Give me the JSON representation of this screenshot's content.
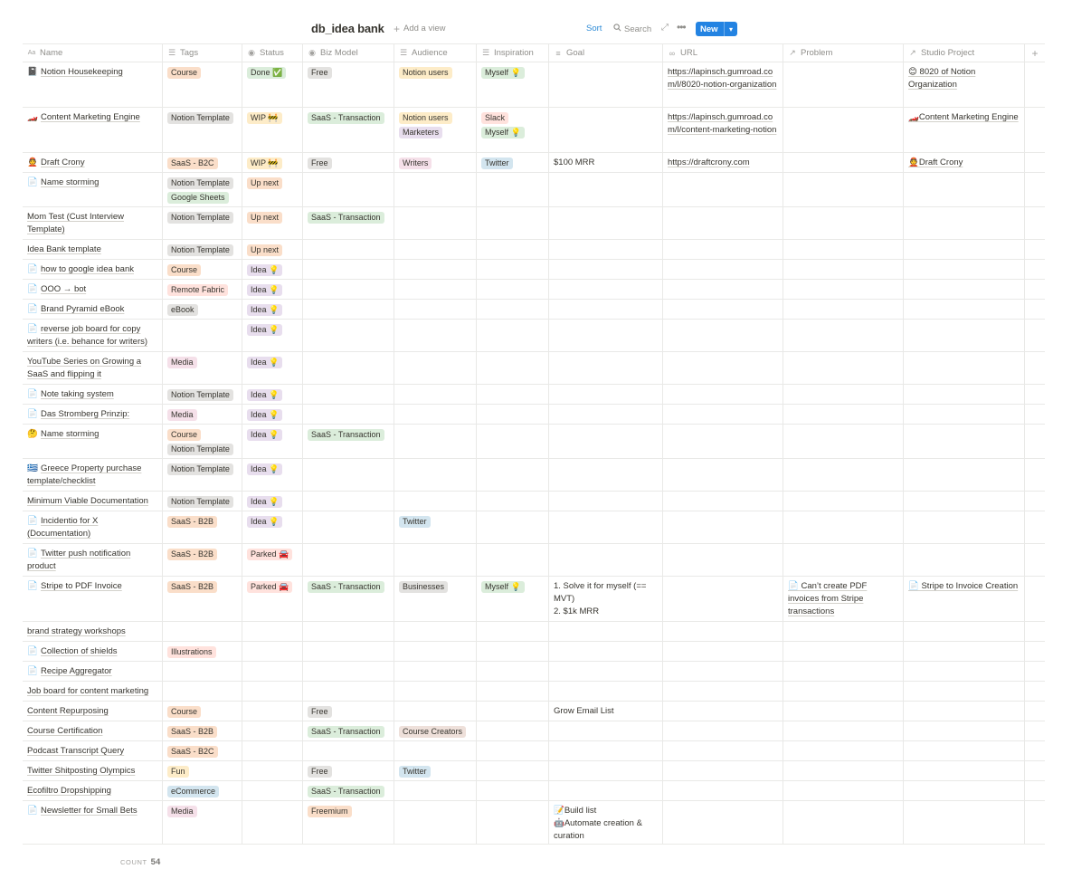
{
  "view": {
    "title": "db_idea bank",
    "add_view_label": "Add a view",
    "sort_label": "Sort",
    "search_label": "Search",
    "new_label": "New"
  },
  "colors": {
    "orange": "#fadec9",
    "gray": "#e3e2e0",
    "green": "#dbeddb",
    "yellow": "#fdecc8",
    "purple": "#e8deee",
    "pink": "#f5e0e9",
    "red": "#ffe2dd",
    "blue": "#d3e5ef",
    "brown": "#eee0da",
    "accent": "#2383e2"
  },
  "columns": [
    {
      "label": "Name",
      "icon": "text-icon"
    },
    {
      "label": "Tags",
      "icon": "list-icon"
    },
    {
      "label": "Status",
      "icon": "select-icon"
    },
    {
      "label": "Biz Model",
      "icon": "select-icon"
    },
    {
      "label": "Audience",
      "icon": "list-icon"
    },
    {
      "label": "Inspiration",
      "icon": "list-icon"
    },
    {
      "label": "Goal",
      "icon": "text-lines-icon"
    },
    {
      "label": "URL",
      "icon": "link-icon"
    },
    {
      "label": "Problem",
      "icon": "relation-icon"
    },
    {
      "label": "Studio Project",
      "icon": "relation-icon"
    }
  ],
  "add_column_label": "+",
  "rows": [
    {
      "icon": "📓",
      "name": "Notion Housekeeping",
      "tags": [
        {
          "t": "Course",
          "c": "orange"
        }
      ],
      "status": [
        {
          "t": "Done ✅",
          "c": "green"
        }
      ],
      "biz": [
        {
          "t": "Free",
          "c": "gray"
        }
      ],
      "audience": [
        {
          "t": "Notion users",
          "c": "yellow"
        }
      ],
      "insp": [
        {
          "t": "Myself 💡",
          "c": "green"
        }
      ],
      "goal": [],
      "url": "https://lapinsch.gumroad.com/l/8020-notion-organization",
      "problem": "",
      "studio": "😊 8020 of Notion Organization",
      "h": 50
    },
    {
      "icon": "🏎️",
      "name": "Content Marketing Engine",
      "tags": [
        {
          "t": "Notion Template",
          "c": "gray"
        }
      ],
      "status": [
        {
          "t": "WIP 🚧",
          "c": "yellow"
        }
      ],
      "biz": [
        {
          "t": "SaaS - Transaction",
          "c": "green"
        }
      ],
      "audience": [
        {
          "t": "Notion users",
          "c": "yellow"
        },
        {
          "t": "Marketers",
          "c": "purple"
        }
      ],
      "insp": [
        {
          "t": "Slack",
          "c": "red"
        },
        {
          "t": "Myself 💡",
          "c": "green"
        }
      ],
      "goal": [],
      "url": "https://lapinsch.gumroad.com/l/content-marketing-notion",
      "problem": "",
      "studio": "🏎️Content Marketing Engine",
      "h": 50
    },
    {
      "icon": "👲",
      "name": "Draft Crony",
      "tags": [
        {
          "t": "SaaS - B2C",
          "c": "orange"
        }
      ],
      "status": [
        {
          "t": "WIP 🚧",
          "c": "yellow"
        }
      ],
      "biz": [
        {
          "t": "Free",
          "c": "gray"
        }
      ],
      "audience": [
        {
          "t": "Writers",
          "c": "pink"
        }
      ],
      "insp": [
        {
          "t": "Twitter",
          "c": "blue"
        }
      ],
      "goal": [
        "$100 MRR"
      ],
      "url": "https://draftcrony.com",
      "problem": "",
      "studio": "👲Draft Crony",
      "h": 22
    },
    {
      "icon": "📄",
      "name": "Name storming",
      "tags": [
        {
          "t": "Notion Template",
          "c": "gray"
        },
        {
          "t": "Google Sheets",
          "c": "green"
        }
      ],
      "status": [
        {
          "t": "Up next",
          "c": "orange"
        }
      ],
      "biz": [],
      "audience": [],
      "insp": [],
      "goal": [],
      "url": "",
      "problem": "",
      "studio": "",
      "h": 38
    },
    {
      "icon": "",
      "name": "Mom Test (Cust Interview Template)",
      "tags": [
        {
          "t": "Notion Template",
          "c": "gray"
        }
      ],
      "status": [
        {
          "t": "Up next",
          "c": "orange"
        }
      ],
      "biz": [
        {
          "t": "SaaS - Transaction",
          "c": "green"
        }
      ],
      "audience": [],
      "insp": [],
      "goal": [],
      "url": "",
      "problem": "",
      "studio": "",
      "h": 36
    },
    {
      "icon": "",
      "name": "Idea Bank template",
      "tags": [
        {
          "t": "Notion Template",
          "c": "gray"
        }
      ],
      "status": [
        {
          "t": "Up next",
          "c": "orange"
        }
      ],
      "biz": [],
      "audience": [],
      "insp": [],
      "goal": [],
      "url": "",
      "problem": "",
      "studio": "",
      "h": 22
    },
    {
      "icon": "📄",
      "name": "how to google idea bank",
      "tags": [
        {
          "t": "Course",
          "c": "orange"
        }
      ],
      "status": [
        {
          "t": "Idea 💡",
          "c": "purple"
        }
      ],
      "biz": [],
      "audience": [],
      "insp": [],
      "goal": [],
      "url": "",
      "problem": "",
      "studio": "",
      "h": 22
    },
    {
      "icon": "📄",
      "name": "OOO → bot",
      "tags": [
        {
          "t": "Remote Fabric",
          "c": "red"
        }
      ],
      "status": [
        {
          "t": "Idea 💡",
          "c": "purple"
        }
      ],
      "biz": [],
      "audience": [],
      "insp": [],
      "goal": [],
      "url": "",
      "problem": "",
      "studio": "",
      "h": 22
    },
    {
      "icon": "📄",
      "name": "Brand Pyramid eBook",
      "tags": [
        {
          "t": "eBook",
          "c": "gray"
        }
      ],
      "status": [
        {
          "t": "Idea 💡",
          "c": "purple"
        }
      ],
      "biz": [],
      "audience": [],
      "insp": [],
      "goal": [],
      "url": "",
      "problem": "",
      "studio": "",
      "h": 22
    },
    {
      "icon": "📄",
      "name": "reverse job board for copy writers (i.e. behance for writers)",
      "tags": [],
      "status": [
        {
          "t": "Idea 💡",
          "c": "purple"
        }
      ],
      "biz": [],
      "audience": [],
      "insp": [],
      "goal": [],
      "url": "",
      "problem": "",
      "studio": "",
      "h": 36
    },
    {
      "icon": "",
      "name": "YouTube Series on Growing a SaaS and flipping it",
      "tags": [
        {
          "t": "Media",
          "c": "pink"
        }
      ],
      "status": [
        {
          "t": "Idea 💡",
          "c": "purple"
        }
      ],
      "biz": [],
      "audience": [],
      "insp": [],
      "goal": [],
      "url": "",
      "problem": "",
      "studio": "",
      "h": 36
    },
    {
      "icon": "📄",
      "name": "Note taking system",
      "tags": [
        {
          "t": "Notion Template",
          "c": "gray"
        }
      ],
      "status": [
        {
          "t": "Idea 💡",
          "c": "purple"
        }
      ],
      "biz": [],
      "audience": [],
      "insp": [],
      "goal": [],
      "url": "",
      "problem": "",
      "studio": "",
      "h": 22
    },
    {
      "icon": "📄",
      "name": "Das Stromberg Prinzip:",
      "tags": [
        {
          "t": "Media",
          "c": "pink"
        }
      ],
      "status": [
        {
          "t": "Idea 💡",
          "c": "purple"
        }
      ],
      "biz": [],
      "audience": [],
      "insp": [],
      "goal": [],
      "url": "",
      "problem": "",
      "studio": "",
      "h": 22
    },
    {
      "icon": "🤔",
      "name": "Name storming",
      "tags": [
        {
          "t": "Course",
          "c": "orange"
        },
        {
          "t": "Notion Template",
          "c": "gray"
        }
      ],
      "status": [
        {
          "t": "Idea 💡",
          "c": "purple"
        }
      ],
      "biz": [
        {
          "t": "SaaS - Transaction",
          "c": "green"
        }
      ],
      "audience": [],
      "insp": [],
      "goal": [],
      "url": "",
      "problem": "",
      "studio": "",
      "h": 38
    },
    {
      "icon": "🇬🇷",
      "name": "Greece Property purchase template/checklist",
      "tags": [
        {
          "t": "Notion Template",
          "c": "gray"
        }
      ],
      "status": [
        {
          "t": "Idea 💡",
          "c": "purple"
        }
      ],
      "biz": [],
      "audience": [],
      "insp": [],
      "goal": [],
      "url": "",
      "problem": "",
      "studio": "",
      "h": 36
    },
    {
      "icon": "",
      "name": "Minimum Viable Documentation",
      "tags": [
        {
          "t": "Notion Template",
          "c": "gray"
        }
      ],
      "status": [
        {
          "t": "Idea 💡",
          "c": "purple"
        }
      ],
      "biz": [],
      "audience": [],
      "insp": [],
      "goal": [],
      "url": "",
      "problem": "",
      "studio": "",
      "h": 22
    },
    {
      "icon": "📄",
      "name": "Incidentio for X (Documentation)",
      "tags": [
        {
          "t": "SaaS - B2B",
          "c": "orange"
        }
      ],
      "status": [
        {
          "t": "Idea 💡",
          "c": "purple"
        }
      ],
      "biz": [],
      "audience": [
        {
          "t": "Twitter",
          "c": "blue"
        }
      ],
      "insp": [],
      "goal": [],
      "url": "",
      "problem": "",
      "studio": "",
      "h": 36
    },
    {
      "icon": "📄",
      "name": "Twitter push notification product",
      "tags": [
        {
          "t": "SaaS - B2B",
          "c": "orange"
        }
      ],
      "status": [
        {
          "t": "Parked 🚘",
          "c": "red"
        }
      ],
      "biz": [],
      "audience": [],
      "insp": [],
      "goal": [],
      "url": "",
      "problem": "",
      "studio": "",
      "h": 36
    },
    {
      "icon": "📄",
      "name": "Stripe to PDF Invoice",
      "tags": [
        {
          "t": "SaaS - B2B",
          "c": "orange"
        }
      ],
      "status": [
        {
          "t": "Parked 🚘",
          "c": "red"
        }
      ],
      "biz": [
        {
          "t": "SaaS - Transaction",
          "c": "green"
        }
      ],
      "audience": [
        {
          "t": "Businesses",
          "c": "gray"
        }
      ],
      "insp": [
        {
          "t": "Myself 💡",
          "c": "green"
        }
      ],
      "goal": [
        "1. Solve it for myself (== MVT)",
        "2. $1k MRR"
      ],
      "url": "",
      "problem": "📄 Can’t create PDF invoices from Stripe transactions",
      "studio": "📄 Stripe to Invoice Creation",
      "h": 50
    },
    {
      "icon": "",
      "name": "brand strategy workshops",
      "tags": [],
      "status": [],
      "biz": [],
      "audience": [],
      "insp": [],
      "goal": [],
      "url": "",
      "problem": "",
      "studio": "",
      "h": 22
    },
    {
      "icon": "📄",
      "name": "Collection of shields",
      "tags": [
        {
          "t": "Illustrations",
          "c": "red"
        }
      ],
      "status": [],
      "biz": [],
      "audience": [],
      "insp": [],
      "goal": [],
      "url": "",
      "problem": "",
      "studio": "",
      "h": 22
    },
    {
      "icon": "📄",
      "name": "Recipe Aggregator",
      "tags": [],
      "status": [],
      "biz": [],
      "audience": [],
      "insp": [],
      "goal": [],
      "url": "",
      "problem": "",
      "studio": "",
      "h": 22
    },
    {
      "icon": "",
      "name": "Job board for content marketing",
      "tags": [],
      "status": [],
      "biz": [],
      "audience": [],
      "insp": [],
      "goal": [],
      "url": "",
      "problem": "",
      "studio": "",
      "h": 22
    },
    {
      "icon": "",
      "name": "Content Repurposing",
      "tags": [
        {
          "t": "Course",
          "c": "orange"
        }
      ],
      "status": [],
      "biz": [
        {
          "t": "Free",
          "c": "gray"
        }
      ],
      "audience": [],
      "insp": [],
      "goal": [
        "Grow Email List"
      ],
      "url": "",
      "problem": "",
      "studio": "",
      "h": 22
    },
    {
      "icon": "",
      "name": "Course Certification",
      "tags": [
        {
          "t": "SaaS - B2B",
          "c": "orange"
        }
      ],
      "status": [],
      "biz": [
        {
          "t": "SaaS - Transaction",
          "c": "green"
        }
      ],
      "audience": [
        {
          "t": "Course Creators",
          "c": "brown"
        }
      ],
      "insp": [],
      "goal": [],
      "url": "",
      "problem": "",
      "studio": "",
      "h": 22
    },
    {
      "icon": "",
      "name": "Podcast Transcript Query",
      "tags": [
        {
          "t": "SaaS - B2C",
          "c": "orange"
        }
      ],
      "status": [],
      "biz": [],
      "audience": [],
      "insp": [],
      "goal": [],
      "url": "",
      "problem": "",
      "studio": "",
      "h": 22
    },
    {
      "icon": "",
      "name": "Twitter Shitposting Olympics",
      "tags": [
        {
          "t": "Fun",
          "c": "yellow"
        }
      ],
      "status": [],
      "biz": [
        {
          "t": "Free",
          "c": "gray"
        }
      ],
      "audience": [
        {
          "t": "Twitter",
          "c": "blue"
        }
      ],
      "insp": [],
      "goal": [],
      "url": "",
      "problem": "",
      "studio": "",
      "h": 22
    },
    {
      "icon": "",
      "name": "Ecofiltro Dropshipping",
      "tags": [
        {
          "t": "eCommerce",
          "c": "blue"
        }
      ],
      "status": [],
      "biz": [
        {
          "t": "SaaS - Transaction",
          "c": "green"
        }
      ],
      "audience": [],
      "insp": [],
      "goal": [],
      "url": "",
      "problem": "",
      "studio": "",
      "h": 22
    },
    {
      "icon": "📄",
      "name": "Newsletter for Small Bets",
      "tags": [
        {
          "t": "Media",
          "c": "pink"
        }
      ],
      "status": [],
      "biz": [
        {
          "t": "Freemium",
          "c": "orange"
        }
      ],
      "audience": [],
      "insp": [],
      "goal": [
        "📝Build list",
        "🤖Automate creation & curation"
      ],
      "url": "",
      "problem": "",
      "studio": "",
      "h": 48
    }
  ],
  "footer": {
    "count_label": "COUNT",
    "count_value": "54"
  }
}
